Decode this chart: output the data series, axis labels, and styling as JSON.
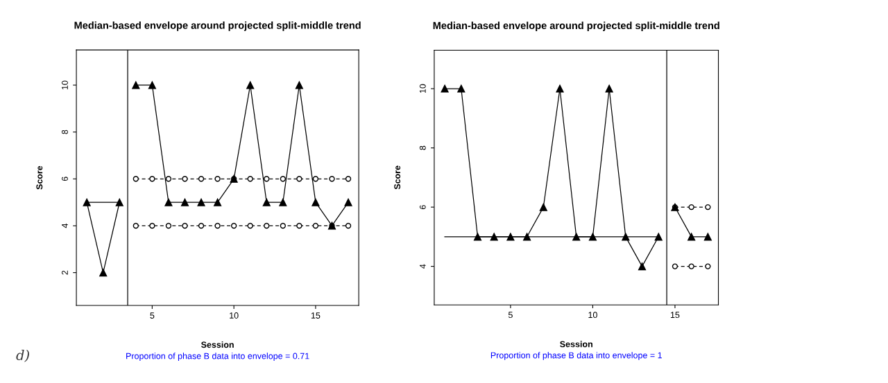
{
  "chart_data": [
    {
      "type": "line",
      "title": "Median-based envelope around projected split-middle trend",
      "xlabel": "Session",
      "ylabel": "Score",
      "xlim": [
        0.36,
        17.64
      ],
      "xticks": [
        5,
        10,
        15
      ],
      "ylim": [
        0.6,
        11.5
      ],
      "yticks": [
        2,
        4,
        6,
        8,
        10
      ],
      "grid": false,
      "legend": false,
      "annotations": [
        "d)",
        "Proportion of phase B data into envelope = 0.71"
      ],
      "ref_lines": [
        {
          "axis": "x",
          "value": 3.5,
          "color": "#000000"
        }
      ],
      "series": [
        {
          "color": "#000000",
          "marker": "circle",
          "line_style": "dashed",
          "x": [
            4,
            5,
            6,
            7,
            8,
            9,
            10,
            11,
            12,
            13,
            14,
            15,
            16,
            17
          ],
          "values": [
            6,
            6,
            6,
            6,
            6,
            6,
            6,
            6,
            6,
            6,
            6,
            6,
            6,
            6
          ]
        },
        {
          "color": "#000000",
          "marker": "circle",
          "line_style": "dashed",
          "x": [
            4,
            5,
            6,
            7,
            8,
            9,
            10,
            11,
            12,
            13,
            14,
            15,
            16,
            17
          ],
          "values": [
            4,
            4,
            4,
            4,
            4,
            4,
            4,
            4,
            4,
            4,
            4,
            4,
            4,
            4
          ]
        },
        {
          "color": "#000000",
          "marker": "triangle",
          "line_style": "solid",
          "x": [
            1,
            2,
            3
          ],
          "values": [
            5,
            2,
            5
          ]
        },
        {
          "color": "#000000",
          "marker": "triangle",
          "line_style": "solid",
          "x": [
            4,
            5,
            6,
            7,
            8,
            9,
            10,
            11,
            12,
            13,
            14,
            15,
            16,
            17
          ],
          "values": [
            10,
            10,
            5,
            5,
            5,
            5,
            6,
            10,
            5,
            5,
            10,
            5,
            4,
            5
          ]
        },
        {
          "color": "#000000",
          "marker": "none",
          "line_style": "solid",
          "x": [
            1,
            3
          ],
          "values": [
            5,
            5
          ]
        }
      ]
    },
    {
      "type": "line",
      "title": "Median-based envelope around projected split-middle trend",
      "xlabel": "Session",
      "ylabel": "Score",
      "xlim": [
        0.36,
        17.64
      ],
      "xticks": [
        5,
        10,
        15
      ],
      "ylim": [
        2.7,
        11.3
      ],
      "yticks": [
        4,
        6,
        8,
        10
      ],
      "grid": false,
      "legend": false,
      "annotations": [
        "Proportion of phase B data into envelope = 1"
      ],
      "ref_lines": [
        {
          "axis": "x",
          "value": 14.5,
          "color": "#000000"
        }
      ],
      "series": [
        {
          "color": "#000000",
          "marker": "circle",
          "line_style": "dashed",
          "x": [
            15,
            16,
            17
          ],
          "values": [
            6,
            6,
            6
          ]
        },
        {
          "color": "#000000",
          "marker": "circle",
          "line_style": "dashed",
          "x": [
            15,
            16,
            17
          ],
          "values": [
            4,
            4,
            4
          ]
        },
        {
          "color": "#000000",
          "marker": "triangle",
          "line_style": "solid",
          "x": [
            1,
            2,
            3,
            4,
            5,
            6,
            7,
            8,
            9,
            10,
            11,
            12,
            13,
            14
          ],
          "values": [
            10,
            10,
            5,
            5,
            5,
            5,
            6,
            10,
            5,
            5,
            10,
            5,
            4,
            5
          ]
        },
        {
          "color": "#000000",
          "marker": "triangle",
          "line_style": "solid",
          "x": [
            15,
            16,
            17
          ],
          "values": [
            6,
            5,
            5
          ]
        },
        {
          "color": "#000000",
          "marker": "none",
          "line_style": "solid",
          "x": [
            1,
            14
          ],
          "values": [
            5,
            5
          ]
        }
      ]
    }
  ]
}
